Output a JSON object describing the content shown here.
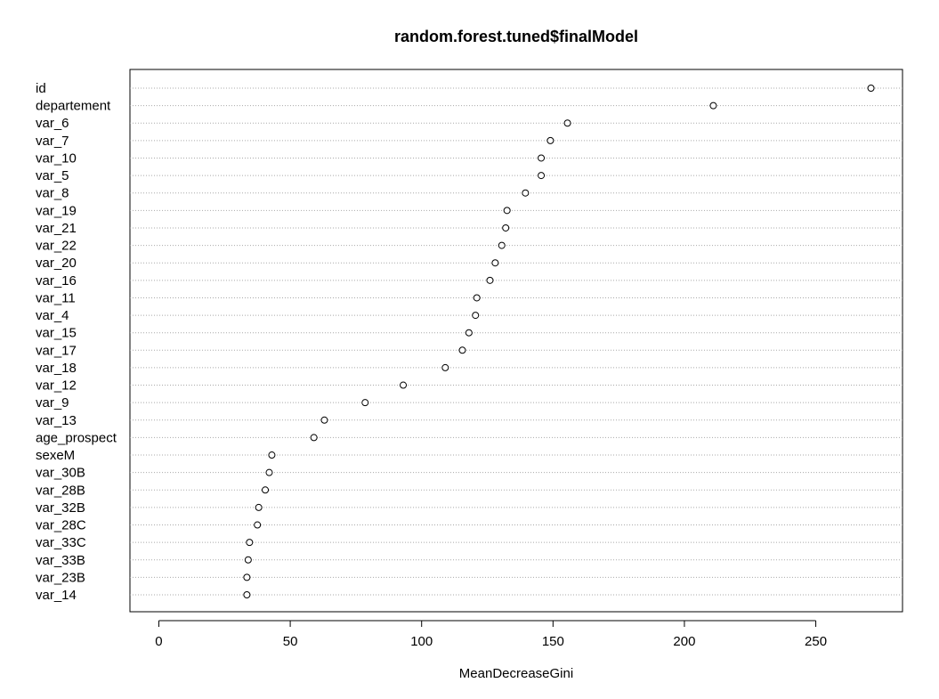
{
  "chart_data": {
    "type": "scatter",
    "subtype": "dotchart",
    "title": "random.forest.tuned$finalModel",
    "xlabel": "MeanDecreaseGini",
    "ylabel": "",
    "xlim": [
      -11,
      283
    ],
    "xticks": [
      0,
      50,
      100,
      150,
      200,
      250
    ],
    "grid": "horizontal-dotted",
    "legend": "none",
    "categories": [
      "id",
      "departement",
      "var_6",
      "var_7",
      "var_10",
      "var_5",
      "var_8",
      "var_19",
      "var_21",
      "var_22",
      "var_20",
      "var_16",
      "var_11",
      "var_4",
      "var_15",
      "var_17",
      "var_18",
      "var_12",
      "var_9",
      "var_13",
      "age_prospect",
      "sexeM",
      "var_30B",
      "var_28B",
      "var_32B",
      "var_28C",
      "var_33C",
      "var_33B",
      "var_23B",
      "var_14"
    ],
    "values": [
      271,
      211,
      155.5,
      149,
      145.5,
      145.5,
      139.5,
      132.5,
      132,
      130.5,
      128,
      126,
      121,
      120.5,
      118,
      115.5,
      109,
      93,
      78.5,
      63,
      59,
      43,
      42,
      40.5,
      38,
      37.5,
      34.5,
      34,
      33.5,
      33.5
    ]
  }
}
